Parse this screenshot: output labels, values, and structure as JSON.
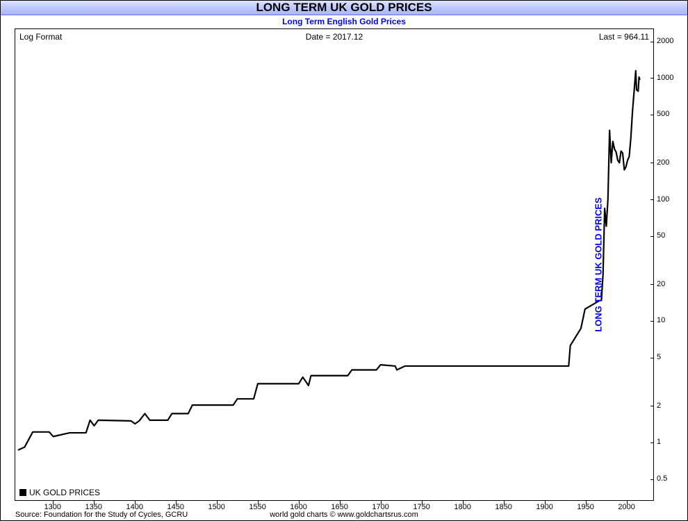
{
  "title": "LONG TERM UK GOLD PRICES",
  "subtitle": "Long Term English Gold Prices",
  "annotations": {
    "log_format": "Log Format",
    "date": "Date = 2017.12",
    "last": "Last = 964.11"
  },
  "axis_label_right": "LONG TERM UK GOLD PRICES",
  "legend": {
    "series_name": "UK GOLD PRICES",
    "swatch_color": "#000000"
  },
  "footer": {
    "source": "Source: Foundation for the Study of Cycles, GCRU",
    "copyright": "world gold charts © www.goldchartsrus.com"
  },
  "chart": {
    "type": "line",
    "background_color": "#ffffff",
    "line_color": "#000000",
    "line_width": 2.2,
    "x": {
      "min": 1257,
      "max": 2030,
      "ticks": [
        1300,
        1350,
        1400,
        1450,
        1500,
        1550,
        1600,
        1650,
        1700,
        1750,
        1800,
        1850,
        1900,
        1950,
        2000
      ],
      "tick_fontsize": 11
    },
    "y": {
      "scale": "log",
      "min": 0.5,
      "max": 2000,
      "ticks": [
        0.5,
        1,
        2,
        5,
        10,
        20,
        50,
        100,
        200,
        500,
        1000,
        2000
      ],
      "tick_fontsize": 11
    },
    "title_bar_gradient": [
      "#dfe5ff",
      "#a8b5ff"
    ],
    "title_fontsize": 17,
    "subtitle_color": "#0000ff",
    "subtitle_fontsize": 12,
    "axis_label_color": "#0000ff",
    "series": [
      {
        "x": 1257,
        "y": 0.85
      },
      {
        "x": 1265,
        "y": 0.9
      },
      {
        "x": 1275,
        "y": 1.2
      },
      {
        "x": 1295,
        "y": 1.2
      },
      {
        "x": 1300,
        "y": 1.1
      },
      {
        "x": 1320,
        "y": 1.18
      },
      {
        "x": 1340,
        "y": 1.18
      },
      {
        "x": 1345,
        "y": 1.5
      },
      {
        "x": 1350,
        "y": 1.35
      },
      {
        "x": 1355,
        "y": 1.5
      },
      {
        "x": 1395,
        "y": 1.48
      },
      {
        "x": 1400,
        "y": 1.4
      },
      {
        "x": 1405,
        "y": 1.48
      },
      {
        "x": 1412,
        "y": 1.7
      },
      {
        "x": 1418,
        "y": 1.5
      },
      {
        "x": 1440,
        "y": 1.5
      },
      {
        "x": 1445,
        "y": 1.7
      },
      {
        "x": 1465,
        "y": 1.7
      },
      {
        "x": 1470,
        "y": 2.0
      },
      {
        "x": 1520,
        "y": 2.0
      },
      {
        "x": 1525,
        "y": 2.25
      },
      {
        "x": 1545,
        "y": 2.25
      },
      {
        "x": 1550,
        "y": 3.0
      },
      {
        "x": 1600,
        "y": 3.0
      },
      {
        "x": 1605,
        "y": 3.4
      },
      {
        "x": 1612,
        "y": 2.9
      },
      {
        "x": 1615,
        "y": 3.5
      },
      {
        "x": 1660,
        "y": 3.5
      },
      {
        "x": 1665,
        "y": 3.9
      },
      {
        "x": 1695,
        "y": 3.9
      },
      {
        "x": 1700,
        "y": 4.3
      },
      {
        "x": 1718,
        "y": 4.2
      },
      {
        "x": 1720,
        "y": 3.9
      },
      {
        "x": 1730,
        "y": 4.2
      },
      {
        "x": 1930,
        "y": 4.2
      },
      {
        "x": 1932,
        "y": 6.2
      },
      {
        "x": 1945,
        "y": 8.6
      },
      {
        "x": 1950,
        "y": 12.4
      },
      {
        "x": 1968,
        "y": 14.6
      },
      {
        "x": 1970,
        "y": 14.6
      },
      {
        "x": 1972,
        "y": 24.0
      },
      {
        "x": 1974,
        "y": 84.0
      },
      {
        "x": 1976,
        "y": 60.0
      },
      {
        "x": 1978,
        "y": 100.0
      },
      {
        "x": 1980,
        "y": 370.0
      },
      {
        "x": 1982,
        "y": 200.0
      },
      {
        "x": 1984,
        "y": 300.0
      },
      {
        "x": 1986,
        "y": 260.0
      },
      {
        "x": 1988,
        "y": 245.0
      },
      {
        "x": 1990,
        "y": 210.0
      },
      {
        "x": 1992,
        "y": 200.0
      },
      {
        "x": 1994,
        "y": 250.0
      },
      {
        "x": 1996,
        "y": 240.0
      },
      {
        "x": 1998,
        "y": 175.0
      },
      {
        "x": 2000,
        "y": 185.0
      },
      {
        "x": 2002,
        "y": 210.0
      },
      {
        "x": 2004,
        "y": 225.0
      },
      {
        "x": 2006,
        "y": 320.0
      },
      {
        "x": 2008,
        "y": 530.0
      },
      {
        "x": 2010,
        "y": 780.0
      },
      {
        "x": 2012,
        "y": 1150.0
      },
      {
        "x": 2013,
        "y": 800.0
      },
      {
        "x": 2015,
        "y": 780.0
      },
      {
        "x": 2016,
        "y": 1020.0
      },
      {
        "x": 2017,
        "y": 964.11
      }
    ]
  }
}
